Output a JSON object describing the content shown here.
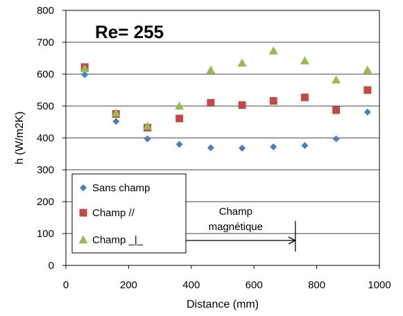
{
  "chart_data": {
    "type": "scatter",
    "title": "Re= 255",
    "xlabel": "Distance (mm)",
    "ylabel": "h (W/m2K)",
    "xlim": [
      0,
      1000
    ],
    "ylim": [
      0,
      800
    ],
    "xticks": [
      0,
      200,
      400,
      600,
      800,
      1000
    ],
    "yticks": [
      0,
      100,
      200,
      300,
      400,
      500,
      600,
      700,
      800
    ],
    "grid": "horizontal",
    "legend_position": "bottom-left",
    "x": [
      60,
      160,
      260,
      362,
      462,
      562,
      662,
      762,
      862,
      962
    ],
    "series": [
      {
        "name": "Sans champ",
        "marker": "diamond",
        "color": "#4a7ebb",
        "values": [
          598,
          452,
          397,
          380,
          369,
          368,
          372,
          376,
          397,
          481
        ]
      },
      {
        "name": "Champ //",
        "marker": "square",
        "color": "#be4b48",
        "values": [
          622,
          475,
          432,
          461,
          510,
          503,
          516,
          527,
          487,
          550
        ]
      },
      {
        "name": "Champ _|_",
        "marker": "triangle",
        "color": "#98b954",
        "values": [
          617,
          478,
          437,
          500,
          613,
          635,
          673,
          642,
          582,
          613
        ]
      }
    ],
    "annotation": {
      "lines": [
        "Champ",
        "magnétique"
      ],
      "x_start": 380,
      "x_end": 785,
      "y_arrow": 80
    }
  }
}
